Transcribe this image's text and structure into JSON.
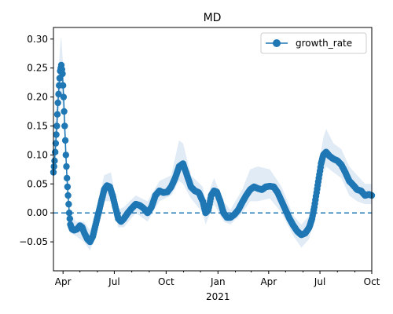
{
  "chart_data": {
    "type": "line",
    "title": "MD",
    "xlabel": "",
    "ylabel": "",
    "x_range": [
      "2020-03-15",
      "2021-10-01"
    ],
    "ylim": [
      -0.1,
      0.32
    ],
    "x_ticks": [
      {
        "label": "Apr",
        "date": "2020-04-01"
      },
      {
        "label": "Jul",
        "date": "2020-07-01"
      },
      {
        "label": "Oct",
        "date": "2020-10-01"
      },
      {
        "label": "Jan",
        "date": "2021-01-01",
        "sublabel": "2021"
      },
      {
        "label": "Apr",
        "date": "2021-04-01"
      },
      {
        "label": "Jul",
        "date": "2021-07-01"
      },
      {
        "label": "Oct",
        "date": "2021-10-01"
      }
    ],
    "y_ticks": [
      {
        "label": "0.30",
        "value": 0.3
      },
      {
        "label": "0.25",
        "value": 0.25
      },
      {
        "label": "0.20",
        "value": 0.2
      },
      {
        "label": "0.15",
        "value": 0.15
      },
      {
        "label": "0.10",
        "value": 0.1
      },
      {
        "label": "0.05",
        "value": 0.05
      },
      {
        "label": "0.00",
        "value": 0.0
      },
      {
        "label": "−0.05",
        "value": -0.05
      }
    ],
    "legend": {
      "position": "top-right",
      "entries": [
        "growth_rate"
      ]
    },
    "reference_line": {
      "y": 0.0,
      "style": "dashed"
    },
    "colors": {
      "line": "#1f77b4",
      "band": "#c6dbef",
      "reference": "#1f77b4"
    },
    "series": [
      {
        "name": "growth_rate",
        "points": [
          [
            "2020-03-15",
            0.07
          ],
          [
            "2020-03-17",
            0.09
          ],
          [
            "2020-03-19",
            0.12
          ],
          [
            "2020-03-21",
            0.15
          ],
          [
            "2020-03-23",
            0.19
          ],
          [
            "2020-03-25",
            0.22
          ],
          [
            "2020-03-27",
            0.245
          ],
          [
            "2020-03-29",
            0.255
          ],
          [
            "2020-03-31",
            0.24
          ],
          [
            "2020-04-02",
            0.2
          ],
          [
            "2020-04-04",
            0.15
          ],
          [
            "2020-04-06",
            0.1
          ],
          [
            "2020-04-08",
            0.06
          ],
          [
            "2020-04-10",
            0.03
          ],
          [
            "2020-04-12",
            0.0
          ],
          [
            "2020-04-14",
            -0.02
          ],
          [
            "2020-04-17",
            -0.028
          ],
          [
            "2020-04-21",
            -0.03
          ],
          [
            "2020-04-26",
            -0.028
          ],
          [
            "2020-05-01",
            -0.022
          ],
          [
            "2020-05-05",
            -0.025
          ],
          [
            "2020-05-09",
            -0.035
          ],
          [
            "2020-05-14",
            -0.045
          ],
          [
            "2020-05-19",
            -0.05
          ],
          [
            "2020-05-24",
            -0.04
          ],
          [
            "2020-05-29",
            -0.02
          ],
          [
            "2020-06-03",
            0.0
          ],
          [
            "2020-06-08",
            0.02
          ],
          [
            "2020-06-13",
            0.04
          ],
          [
            "2020-06-18",
            0.047
          ],
          [
            "2020-06-23",
            0.045
          ],
          [
            "2020-06-28",
            0.03
          ],
          [
            "2020-07-03",
            0.01
          ],
          [
            "2020-07-08",
            -0.01
          ],
          [
            "2020-07-13",
            -0.015
          ],
          [
            "2020-07-18",
            -0.01
          ],
          [
            "2020-07-25",
            0.0
          ],
          [
            "2020-08-01",
            0.008
          ],
          [
            "2020-08-08",
            0.015
          ],
          [
            "2020-08-15",
            0.013
          ],
          [
            "2020-08-22",
            0.008
          ],
          [
            "2020-08-29",
            0.0
          ],
          [
            "2020-09-05",
            0.01
          ],
          [
            "2020-09-12",
            0.03
          ],
          [
            "2020-09-19",
            0.038
          ],
          [
            "2020-09-26",
            0.035
          ],
          [
            "2020-10-03",
            0.036
          ],
          [
            "2020-10-10",
            0.045
          ],
          [
            "2020-10-17",
            0.06
          ],
          [
            "2020-10-24",
            0.08
          ],
          [
            "2020-10-31",
            0.085
          ],
          [
            "2020-11-07",
            0.065
          ],
          [
            "2020-11-14",
            0.045
          ],
          [
            "2020-11-21",
            0.038
          ],
          [
            "2020-11-28",
            0.035
          ],
          [
            "2020-12-05",
            0.02
          ],
          [
            "2020-12-10",
            0.0
          ],
          [
            "2020-12-15",
            0.005
          ],
          [
            "2020-12-20",
            0.03
          ],
          [
            "2020-12-25",
            0.038
          ],
          [
            "2020-12-30",
            0.036
          ],
          [
            "2021-01-05",
            0.02
          ],
          [
            "2021-01-11",
            0.0
          ],
          [
            "2021-01-17",
            -0.008
          ],
          [
            "2021-01-23",
            -0.008
          ],
          [
            "2021-01-30",
            -0.003
          ],
          [
            "2021-02-06",
            0.005
          ],
          [
            "2021-02-13",
            0.018
          ],
          [
            "2021-02-20",
            0.03
          ],
          [
            "2021-02-27",
            0.04
          ],
          [
            "2021-03-06",
            0.045
          ],
          [
            "2021-03-13",
            0.042
          ],
          [
            "2021-03-20",
            0.04
          ],
          [
            "2021-03-27",
            0.045
          ],
          [
            "2021-04-03",
            0.046
          ],
          [
            "2021-04-10",
            0.045
          ],
          [
            "2021-04-17",
            0.035
          ],
          [
            "2021-04-24",
            0.02
          ],
          [
            "2021-05-01",
            0.005
          ],
          [
            "2021-05-08",
            -0.01
          ],
          [
            "2021-05-15",
            -0.022
          ],
          [
            "2021-05-22",
            -0.032
          ],
          [
            "2021-05-29",
            -0.038
          ],
          [
            "2021-06-05",
            -0.035
          ],
          [
            "2021-06-12",
            -0.025
          ],
          [
            "2021-06-17",
            -0.01
          ],
          [
            "2021-06-21",
            0.01
          ],
          [
            "2021-06-25",
            0.035
          ],
          [
            "2021-06-29",
            0.06
          ],
          [
            "2021-07-03",
            0.085
          ],
          [
            "2021-07-07",
            0.1
          ],
          [
            "2021-07-12",
            0.105
          ],
          [
            "2021-07-18",
            0.098
          ],
          [
            "2021-07-25",
            0.093
          ],
          [
            "2021-08-01",
            0.09
          ],
          [
            "2021-08-08",
            0.083
          ],
          [
            "2021-08-15",
            0.07
          ],
          [
            "2021-08-22",
            0.055
          ],
          [
            "2021-08-29",
            0.048
          ],
          [
            "2021-09-05",
            0.04
          ],
          [
            "2021-09-12",
            0.038
          ],
          [
            "2021-09-19",
            0.03
          ],
          [
            "2021-09-26",
            0.032
          ],
          [
            "2021-10-01",
            0.03
          ]
        ]
      }
    ],
    "band": [
      [
        "2020-03-15",
        0.05,
        0.1
      ],
      [
        "2020-03-22",
        0.14,
        0.22
      ],
      [
        "2020-03-27",
        0.2,
        0.29
      ],
      [
        "2020-03-29",
        0.21,
        0.305
      ],
      [
        "2020-04-02",
        0.16,
        0.24
      ],
      [
        "2020-04-08",
        0.04,
        0.09
      ],
      [
        "2020-04-14",
        -0.035,
        0.0
      ],
      [
        "2020-04-24",
        -0.04,
        -0.015
      ],
      [
        "2020-05-08",
        -0.05,
        -0.015
      ],
      [
        "2020-05-19",
        -0.065,
        -0.03
      ],
      [
        "2020-06-03",
        -0.02,
        0.02
      ],
      [
        "2020-06-13",
        0.02,
        0.065
      ],
      [
        "2020-06-25",
        0.02,
        0.07
      ],
      [
        "2020-07-08",
        -0.025,
        0.005
      ],
      [
        "2020-07-18",
        -0.025,
        0.01
      ],
      [
        "2020-08-08",
        0.0,
        0.03
      ],
      [
        "2020-08-29",
        -0.015,
        0.02
      ],
      [
        "2020-09-19",
        0.02,
        0.055
      ],
      [
        "2020-10-10",
        0.03,
        0.065
      ],
      [
        "2020-10-24",
        0.055,
        0.125
      ],
      [
        "2020-10-31",
        0.05,
        0.12
      ],
      [
        "2020-11-14",
        0.025,
        0.065
      ],
      [
        "2020-12-05",
        0.0,
        0.045
      ],
      [
        "2020-12-10",
        -0.02,
        0.02
      ],
      [
        "2020-12-25",
        0.015,
        0.06
      ],
      [
        "2021-01-11",
        -0.015,
        0.02
      ],
      [
        "2021-01-23",
        -0.02,
        0.005
      ],
      [
        "2021-02-13",
        0.0,
        0.04
      ],
      [
        "2021-02-27",
        0.02,
        0.075
      ],
      [
        "2021-03-13",
        0.02,
        0.08
      ],
      [
        "2021-04-03",
        0.025,
        0.075
      ],
      [
        "2021-04-24",
        0.0,
        0.045
      ],
      [
        "2021-05-15",
        -0.04,
        -0.005
      ],
      [
        "2021-05-29",
        -0.06,
        -0.02
      ],
      [
        "2021-06-12",
        -0.045,
        -0.005
      ],
      [
        "2021-06-25",
        0.01,
        0.06
      ],
      [
        "2021-07-07",
        0.07,
        0.13
      ],
      [
        "2021-07-12",
        0.08,
        0.145
      ],
      [
        "2021-07-25",
        0.07,
        0.12
      ],
      [
        "2021-08-08",
        0.06,
        0.11
      ],
      [
        "2021-08-22",
        0.03,
        0.08
      ],
      [
        "2021-09-05",
        0.02,
        0.065
      ],
      [
        "2021-09-19",
        0.015,
        0.05
      ],
      [
        "2021-10-01",
        0.015,
        0.05
      ]
    ]
  }
}
